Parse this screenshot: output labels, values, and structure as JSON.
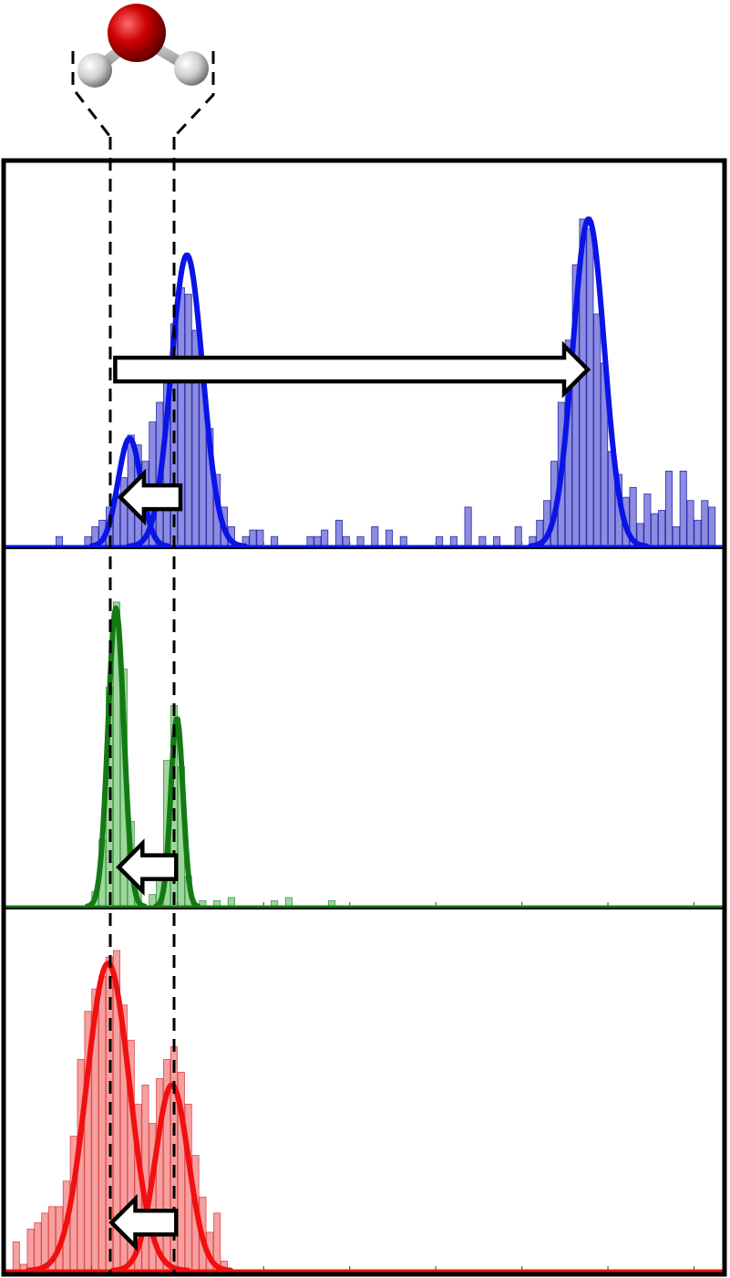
{
  "colors": {
    "frame": "#000000",
    "blue_line": "#0a14e6",
    "blue_bar_fill": "#8c8ce0",
    "blue_bar_edge": "#2a2ab0",
    "green_line": "#137a13",
    "green_bar_fill": "#9ed69e",
    "green_bar_edge": "#3c9a3c",
    "red_line": "#f01010",
    "red_bar_fill": "#f6a0a0",
    "red_bar_edge": "#e04a4a",
    "oxygen": "#c00000",
    "hydrogen": "#d8d8d8",
    "arrow_fill": "#ffffff"
  },
  "icons": [
    "water-molecule-icon",
    "arrow-left-icon",
    "arrow-right-icon"
  ],
  "chart_data": [
    {
      "type": "bar",
      "panel": "top",
      "xlim": [
        0,
        100
      ],
      "ylim": [
        0,
        1.0
      ],
      "grid": false,
      "x_ticks": [
        12,
        24,
        36,
        48,
        60,
        72,
        84,
        96
      ],
      "reference_lines_x": [
        15.2,
        23.9
      ],
      "histogram": [
        [
          7.5,
          0.03
        ],
        [
          8.5,
          0.0
        ],
        [
          11.5,
          0.03
        ],
        [
          12.5,
          0.06
        ],
        [
          13.5,
          0.08
        ],
        [
          14.5,
          0.12
        ],
        [
          15.5,
          0.16
        ],
        [
          16.5,
          0.21
        ],
        [
          17.5,
          0.34
        ],
        [
          18.5,
          0.31
        ],
        [
          19.5,
          0.26
        ],
        [
          20.5,
          0.38
        ],
        [
          21.5,
          0.44
        ],
        [
          22.5,
          0.55
        ],
        [
          23.5,
          0.68
        ],
        [
          24.5,
          0.79
        ],
        [
          25.5,
          0.77
        ],
        [
          26.5,
          0.66
        ],
        [
          27.5,
          0.52
        ],
        [
          28.5,
          0.36
        ],
        [
          29.5,
          0.22
        ],
        [
          30.5,
          0.12
        ],
        [
          31.5,
          0.06
        ],
        [
          33.5,
          0.03
        ],
        [
          34.5,
          0.05
        ],
        [
          35.5,
          0.05
        ],
        [
          37.5,
          0.03
        ],
        [
          42.5,
          0.03
        ],
        [
          43.5,
          0.03
        ],
        [
          44.5,
          0.05
        ],
        [
          46.5,
          0.08
        ],
        [
          47.5,
          0.03
        ],
        [
          49.5,
          0.03
        ],
        [
          51.5,
          0.06
        ],
        [
          53.5,
          0.05
        ],
        [
          55.5,
          0.03
        ],
        [
          60.5,
          0.03
        ],
        [
          62.5,
          0.03
        ],
        [
          64.5,
          0.12
        ],
        [
          66.5,
          0.03
        ],
        [
          68.5,
          0.03
        ],
        [
          71.5,
          0.06
        ],
        [
          73.5,
          0.03
        ],
        [
          74.5,
          0.08
        ],
        [
          75.5,
          0.14
        ],
        [
          76.5,
          0.26
        ],
        [
          77.5,
          0.44
        ],
        [
          78.5,
          0.63
        ],
        [
          79.5,
          0.86
        ],
        [
          80.5,
          1.0
        ],
        [
          81.5,
          0.97
        ],
        [
          82.5,
          0.71
        ],
        [
          83.5,
          0.56
        ],
        [
          84.5,
          0.29
        ],
        [
          85.5,
          0.22
        ],
        [
          86.5,
          0.15
        ],
        [
          87.5,
          0.18
        ],
        [
          88.5,
          0.07
        ],
        [
          89.5,
          0.16
        ],
        [
          90.5,
          0.1
        ],
        [
          91.5,
          0.11
        ],
        [
          92.5,
          0.23
        ],
        [
          93.5,
          0.06
        ],
        [
          94.5,
          0.23
        ],
        [
          95.5,
          0.14
        ],
        [
          96.5,
          0.08
        ],
        [
          97.5,
          0.14
        ],
        [
          98.5,
          0.12
        ]
      ],
      "gaussians": [
        {
          "mu": 17.3,
          "amp": 0.33,
          "sigma": 1.6
        },
        {
          "mu": 25.3,
          "amp": 0.89,
          "sigma": 2.2
        },
        {
          "mu": 81.3,
          "amp": 1.0,
          "sigma": 2.2
        }
      ],
      "arrows": [
        {
          "direction": "left",
          "x_from": 24.4,
          "x_to": 16.0,
          "y": 0.15
        },
        {
          "direction": "right",
          "x_from": 15.3,
          "x_to": 81.2,
          "y": 0.54
        }
      ]
    },
    {
      "type": "bar",
      "panel": "middle",
      "xlim": [
        0,
        100
      ],
      "ylim": [
        0,
        1.0
      ],
      "grid": false,
      "x_ticks": [
        12,
        24,
        36,
        48,
        60,
        72,
        84,
        96
      ],
      "reference_lines_x": [
        15.2,
        23.9
      ],
      "histogram": [
        [
          12.5,
          0.05
        ],
        [
          13.5,
          0.22
        ],
        [
          14.5,
          0.72
        ],
        [
          15.5,
          1.0
        ],
        [
          16.5,
          0.78
        ],
        [
          17.5,
          0.28
        ],
        [
          18.5,
          0.06
        ],
        [
          20.5,
          0.04
        ],
        [
          21.5,
          0.14
        ],
        [
          22.5,
          0.48
        ],
        [
          23.5,
          0.66
        ],
        [
          24.5,
          0.46
        ],
        [
          25.5,
          0.1
        ],
        [
          27.5,
          0.02
        ],
        [
          29.5,
          0.02
        ],
        [
          31.5,
          0.03
        ],
        [
          37.5,
          0.02
        ],
        [
          39.5,
          0.03
        ],
        [
          45.5,
          0.02
        ]
      ],
      "gaussians": [
        {
          "mu": 15.4,
          "amp": 0.98,
          "sigma": 1.1
        },
        {
          "mu": 23.9,
          "amp": 0.62,
          "sigma": 0.85
        }
      ],
      "arrows": [
        {
          "direction": "left",
          "x_from": 23.8,
          "x_to": 15.8,
          "y": 0.13
        }
      ]
    },
    {
      "type": "bar",
      "panel": "bottom",
      "xlim": [
        0,
        100
      ],
      "ylim": [
        0,
        1.0
      ],
      "grid": false,
      "x_ticks": [
        12,
        24,
        36,
        48,
        60,
        72,
        84,
        96
      ],
      "reference_lines_x": [
        15.2,
        23.9
      ],
      "histogram": [
        [
          1.5,
          0.09
        ],
        [
          2.5,
          0.02
        ],
        [
          3.5,
          0.13
        ],
        [
          4.5,
          0.15
        ],
        [
          5.5,
          0.18
        ],
        [
          6.5,
          0.2
        ],
        [
          7.5,
          0.2
        ],
        [
          8.5,
          0.28
        ],
        [
          9.5,
          0.42
        ],
        [
          10.5,
          0.66
        ],
        [
          11.5,
          0.81
        ],
        [
          12.5,
          0.88
        ],
        [
          13.5,
          0.92
        ],
        [
          14.5,
          0.98
        ],
        [
          15.5,
          1.0
        ],
        [
          16.5,
          0.83
        ],
        [
          17.5,
          0.72
        ],
        [
          18.5,
          0.52
        ],
        [
          19.5,
          0.58
        ],
        [
          20.5,
          0.46
        ],
        [
          21.5,
          0.6
        ],
        [
          22.5,
          0.66
        ],
        [
          23.5,
          0.7
        ],
        [
          24.5,
          0.62
        ],
        [
          25.5,
          0.52
        ],
        [
          26.5,
          0.36
        ],
        [
          27.5,
          0.23
        ],
        [
          28.5,
          0.12
        ],
        [
          29.5,
          0.18
        ],
        [
          30.5,
          0.03
        ]
      ],
      "gaussians": [
        {
          "mu": 14.3,
          "amp": 0.96,
          "sigma": 3.0
        },
        {
          "mu": 23.2,
          "amp": 0.58,
          "sigma": 2.3
        }
      ],
      "arrows": [
        {
          "direction": "left",
          "x_from": 23.8,
          "x_to": 14.8,
          "y": 0.15
        }
      ]
    }
  ]
}
